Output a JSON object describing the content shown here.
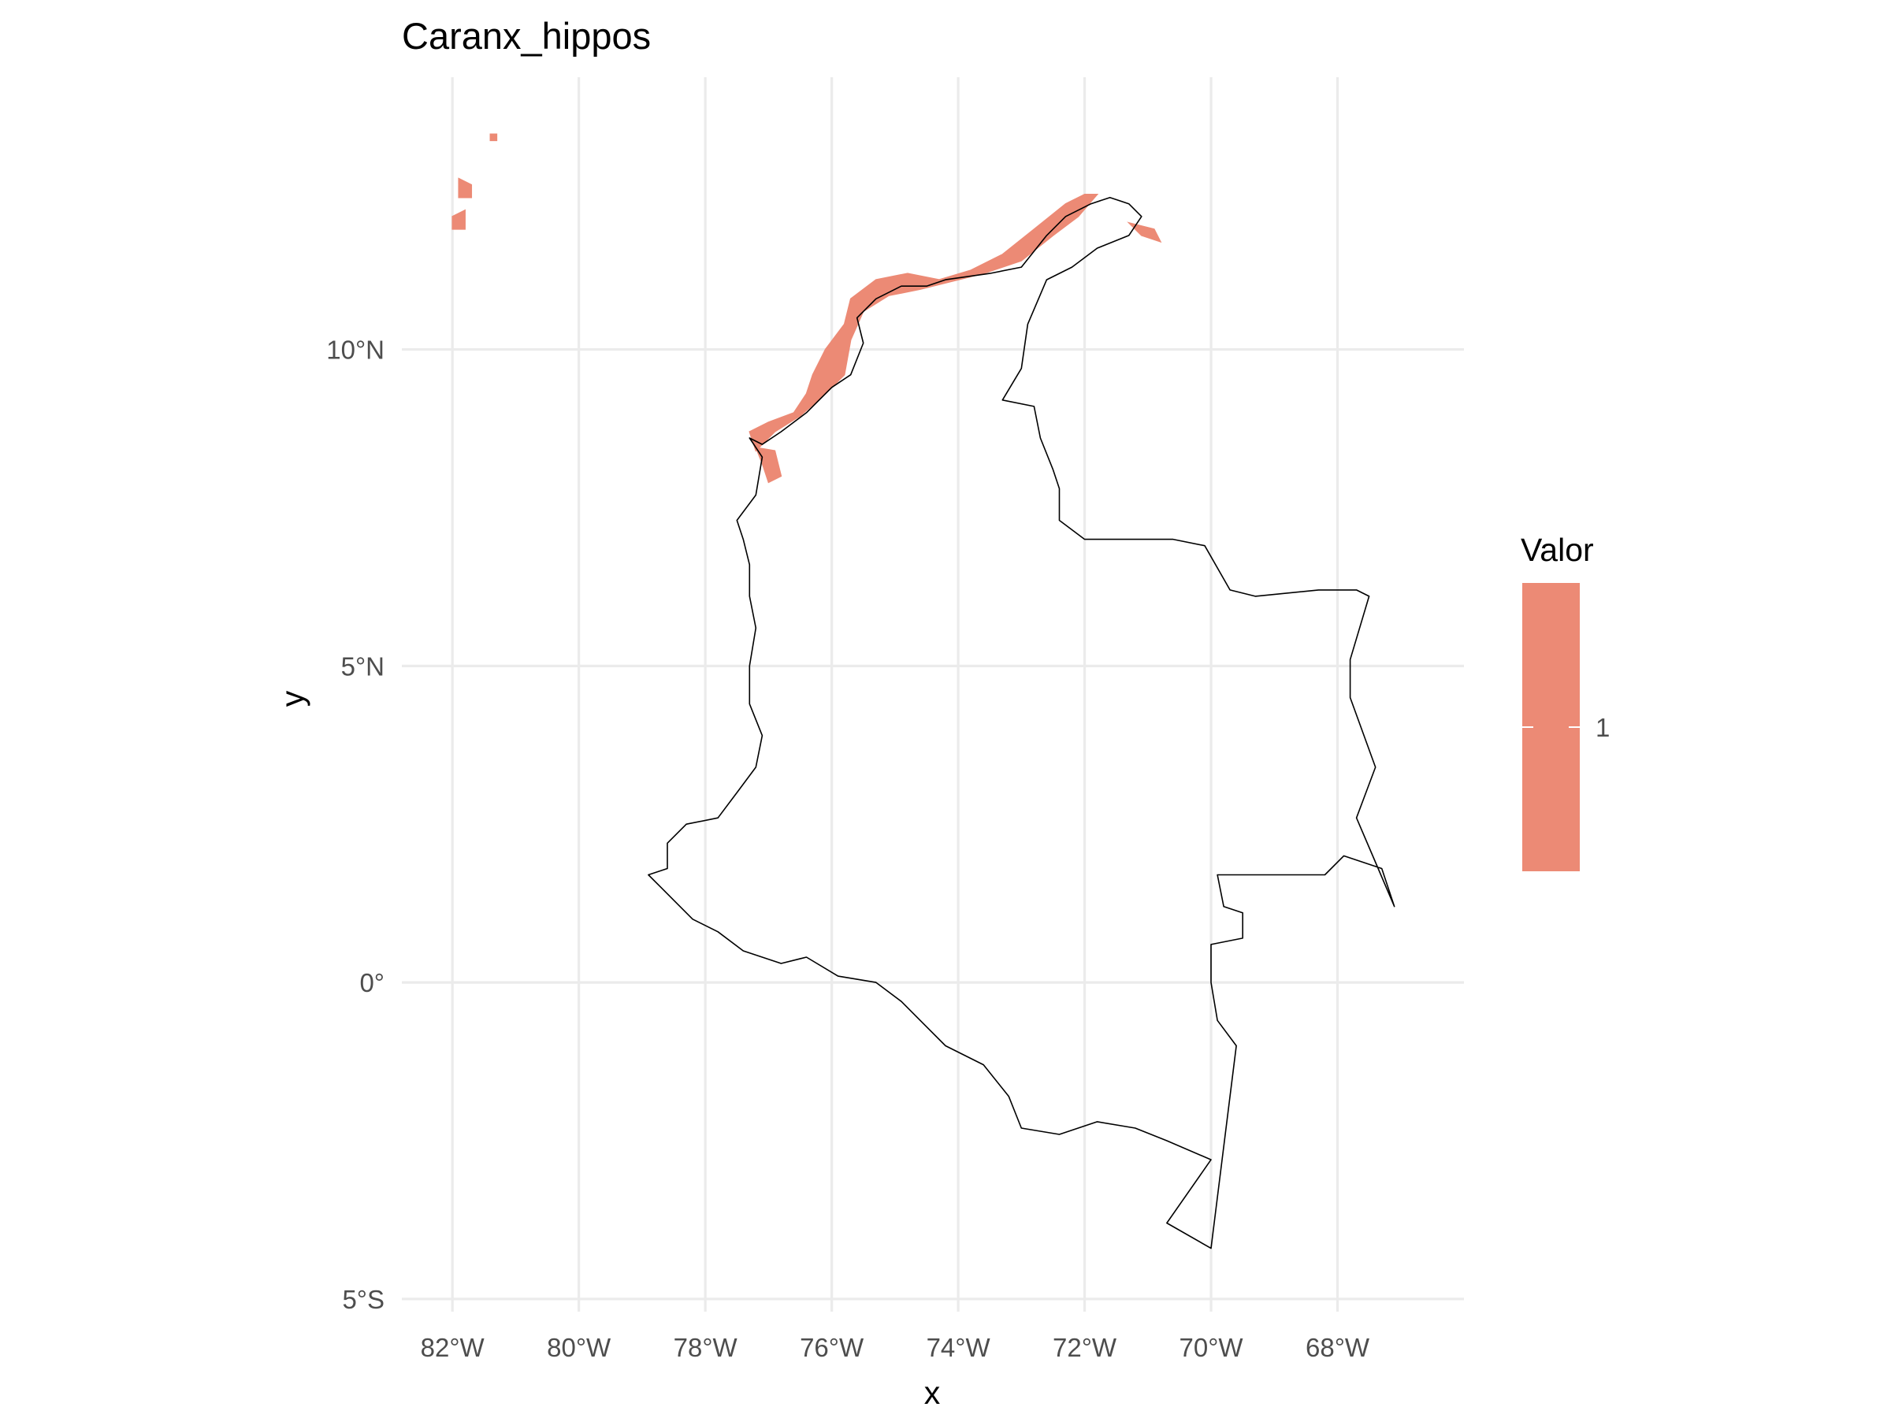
{
  "chart_data": {
    "type": "map",
    "title": "Caranx_hippos",
    "xlabel": "x",
    "ylabel": "y",
    "x_ticks": [
      {
        "value": -82,
        "label": "82°W"
      },
      {
        "value": -80,
        "label": "80°W"
      },
      {
        "value": -78,
        "label": "78°W"
      },
      {
        "value": -76,
        "label": "76°W"
      },
      {
        "value": -74,
        "label": "74°W"
      },
      {
        "value": -72,
        "label": "72°W"
      },
      {
        "value": -70,
        "label": "70°W"
      },
      {
        "value": -68,
        "label": "68°W"
      }
    ],
    "y_ticks": [
      {
        "value": 10,
        "label": "10°N"
      },
      {
        "value": 5,
        "label": "5°N"
      },
      {
        "value": 0,
        "label": "0°"
      },
      {
        "value": -5,
        "label": "5°S"
      }
    ],
    "xlim": [
      -82.8,
      -66.0
    ],
    "ylim": [
      -5.2,
      14.3
    ],
    "grid": true,
    "legend": {
      "title": "Valor",
      "position": "right",
      "entries": [
        {
          "label": "1",
          "value": 1,
          "color": "#ec8a75"
        }
      ]
    },
    "colors": {
      "presence": "#ec8a75",
      "outline": "#000000",
      "grid": "#ebebeb"
    },
    "country_outline": [
      [
        -77.3,
        8.6
      ],
      [
        -77.1,
        8.3
      ],
      [
        -77.2,
        7.7
      ],
      [
        -77.5,
        7.3
      ],
      [
        -77.4,
        7.0
      ],
      [
        -77.3,
        6.6
      ],
      [
        -77.3,
        6.1
      ],
      [
        -77.2,
        5.6
      ],
      [
        -77.3,
        5.0
      ],
      [
        -77.3,
        4.4
      ],
      [
        -77.1,
        3.9
      ],
      [
        -77.2,
        3.4
      ],
      [
        -77.5,
        3.0
      ],
      [
        -77.8,
        2.6
      ],
      [
        -78.3,
        2.5
      ],
      [
        -78.6,
        2.2
      ],
      [
        -78.6,
        1.8
      ],
      [
        -78.9,
        1.7
      ],
      [
        -78.7,
        1.5
      ],
      [
        -78.2,
        1.0
      ],
      [
        -77.8,
        0.8
      ],
      [
        -77.4,
        0.5
      ],
      [
        -76.8,
        0.3
      ],
      [
        -76.4,
        0.4
      ],
      [
        -75.9,
        0.1
      ],
      [
        -75.3,
        0.0
      ],
      [
        -74.9,
        -0.3
      ],
      [
        -74.5,
        -0.7
      ],
      [
        -74.2,
        -1.0
      ],
      [
        -73.6,
        -1.3
      ],
      [
        -73.2,
        -1.8
      ],
      [
        -73.0,
        -2.3
      ],
      [
        -72.4,
        -2.4
      ],
      [
        -71.8,
        -2.2
      ],
      [
        -71.2,
        -2.3
      ],
      [
        -70.7,
        -2.5
      ],
      [
        -70.0,
        -2.8
      ],
      [
        -70.7,
        -3.8
      ],
      [
        -70.0,
        -4.2
      ],
      [
        -69.6,
        -1.0
      ],
      [
        -69.9,
        -0.6
      ],
      [
        -70.0,
        0.0
      ],
      [
        -70.0,
        0.6
      ],
      [
        -69.5,
        0.7
      ],
      [
        -69.5,
        1.1
      ],
      [
        -69.8,
        1.2
      ],
      [
        -69.9,
        1.7
      ],
      [
        -68.2,
        1.7
      ],
      [
        -67.9,
        2.0
      ],
      [
        -67.3,
        1.8
      ],
      [
        -67.1,
        1.2
      ],
      [
        -67.4,
        1.9
      ],
      [
        -67.7,
        2.6
      ],
      [
        -67.4,
        3.4
      ],
      [
        -67.8,
        4.5
      ],
      [
        -67.8,
        5.1
      ],
      [
        -67.5,
        6.1
      ],
      [
        -67.7,
        6.2
      ],
      [
        -68.3,
        6.2
      ],
      [
        -69.3,
        6.1
      ],
      [
        -69.7,
        6.2
      ],
      [
        -70.1,
        6.9
      ],
      [
        -70.6,
        7.0
      ],
      [
        -71.4,
        7.0
      ],
      [
        -72.0,
        7.0
      ],
      [
        -72.4,
        7.3
      ],
      [
        -72.4,
        7.8
      ],
      [
        -72.5,
        8.1
      ],
      [
        -72.7,
        8.6
      ],
      [
        -72.8,
        9.1
      ],
      [
        -73.3,
        9.2
      ],
      [
        -73.0,
        9.7
      ],
      [
        -72.9,
        10.4
      ],
      [
        -72.6,
        11.1
      ],
      [
        -72.2,
        11.3
      ],
      [
        -71.8,
        11.6
      ],
      [
        -71.3,
        11.8
      ],
      [
        -71.1,
        12.1
      ],
      [
        -71.3,
        12.3
      ],
      [
        -71.6,
        12.4
      ],
      [
        -71.9,
        12.3
      ],
      [
        -72.3,
        12.1
      ],
      [
        -72.6,
        11.8
      ],
      [
        -73.0,
        11.3
      ],
      [
        -73.5,
        11.2
      ],
      [
        -74.2,
        11.1
      ],
      [
        -74.5,
        11.0
      ],
      [
        -74.9,
        11.0
      ],
      [
        -75.3,
        10.8
      ],
      [
        -75.6,
        10.5
      ],
      [
        -75.5,
        10.1
      ],
      [
        -75.7,
        9.6
      ],
      [
        -76.0,
        9.4
      ],
      [
        -76.4,
        9.0
      ],
      [
        -76.8,
        8.7
      ],
      [
        -77.1,
        8.5
      ],
      [
        -77.3,
        8.6
      ]
    ],
    "presence_regions": [
      [
        [
          -77.3,
          8.7
        ],
        [
          -77.0,
          8.85
        ],
        [
          -76.6,
          9.0
        ],
        [
          -76.4,
          9.3
        ],
        [
          -76.3,
          9.6
        ],
        [
          -76.1,
          10.0
        ],
        [
          -75.8,
          10.4
        ],
        [
          -75.7,
          10.8
        ],
        [
          -75.3,
          11.1
        ],
        [
          -74.8,
          11.2
        ],
        [
          -74.3,
          11.1
        ],
        [
          -73.8,
          11.25
        ],
        [
          -73.3,
          11.5
        ],
        [
          -72.8,
          11.9
        ],
        [
          -72.3,
          12.3
        ],
        [
          -72.0,
          12.45
        ],
        [
          -71.8,
          12.45
        ],
        [
          -72.1,
          12.1
        ],
        [
          -72.5,
          11.8
        ],
        [
          -73.0,
          11.4
        ],
        [
          -73.6,
          11.2
        ],
        [
          -74.2,
          11.05
        ],
        [
          -74.6,
          10.95
        ],
        [
          -75.1,
          10.85
        ],
        [
          -75.5,
          10.6
        ],
        [
          -75.7,
          10.15
        ],
        [
          -75.8,
          9.6
        ],
        [
          -76.1,
          9.3
        ],
        [
          -76.5,
          8.95
        ],
        [
          -76.9,
          8.7
        ],
        [
          -77.1,
          8.5
        ],
        [
          -77.2,
          8.4
        ],
        [
          -77.3,
          8.7
        ]
      ],
      [
        [
          -77.2,
          8.45
        ],
        [
          -76.9,
          8.4
        ],
        [
          -76.8,
          8.0
        ],
        [
          -77.0,
          7.9
        ],
        [
          -77.1,
          8.2
        ],
        [
          -77.2,
          8.45
        ]
      ],
      [
        [
          -71.3,
          12.0
        ],
        [
          -70.9,
          11.9
        ],
        [
          -70.8,
          11.7
        ],
        [
          -71.1,
          11.8
        ],
        [
          -71.3,
          12.0
        ]
      ],
      [
        [
          -81.9,
          12.7
        ],
        [
          -81.7,
          12.6
        ],
        [
          -81.7,
          12.4
        ],
        [
          -81.9,
          12.4
        ],
        [
          -81.9,
          12.7
        ]
      ],
      [
        [
          -82.0,
          12.1
        ],
        [
          -81.8,
          12.2
        ],
        [
          -81.8,
          11.9
        ],
        [
          -82.0,
          11.9
        ],
        [
          -82.0,
          12.1
        ]
      ],
      [
        [
          -81.4,
          13.4
        ],
        [
          -81.3,
          13.4
        ],
        [
          -81.3,
          13.3
        ],
        [
          -81.4,
          13.3
        ],
        [
          -81.4,
          13.4
        ]
      ]
    ]
  }
}
